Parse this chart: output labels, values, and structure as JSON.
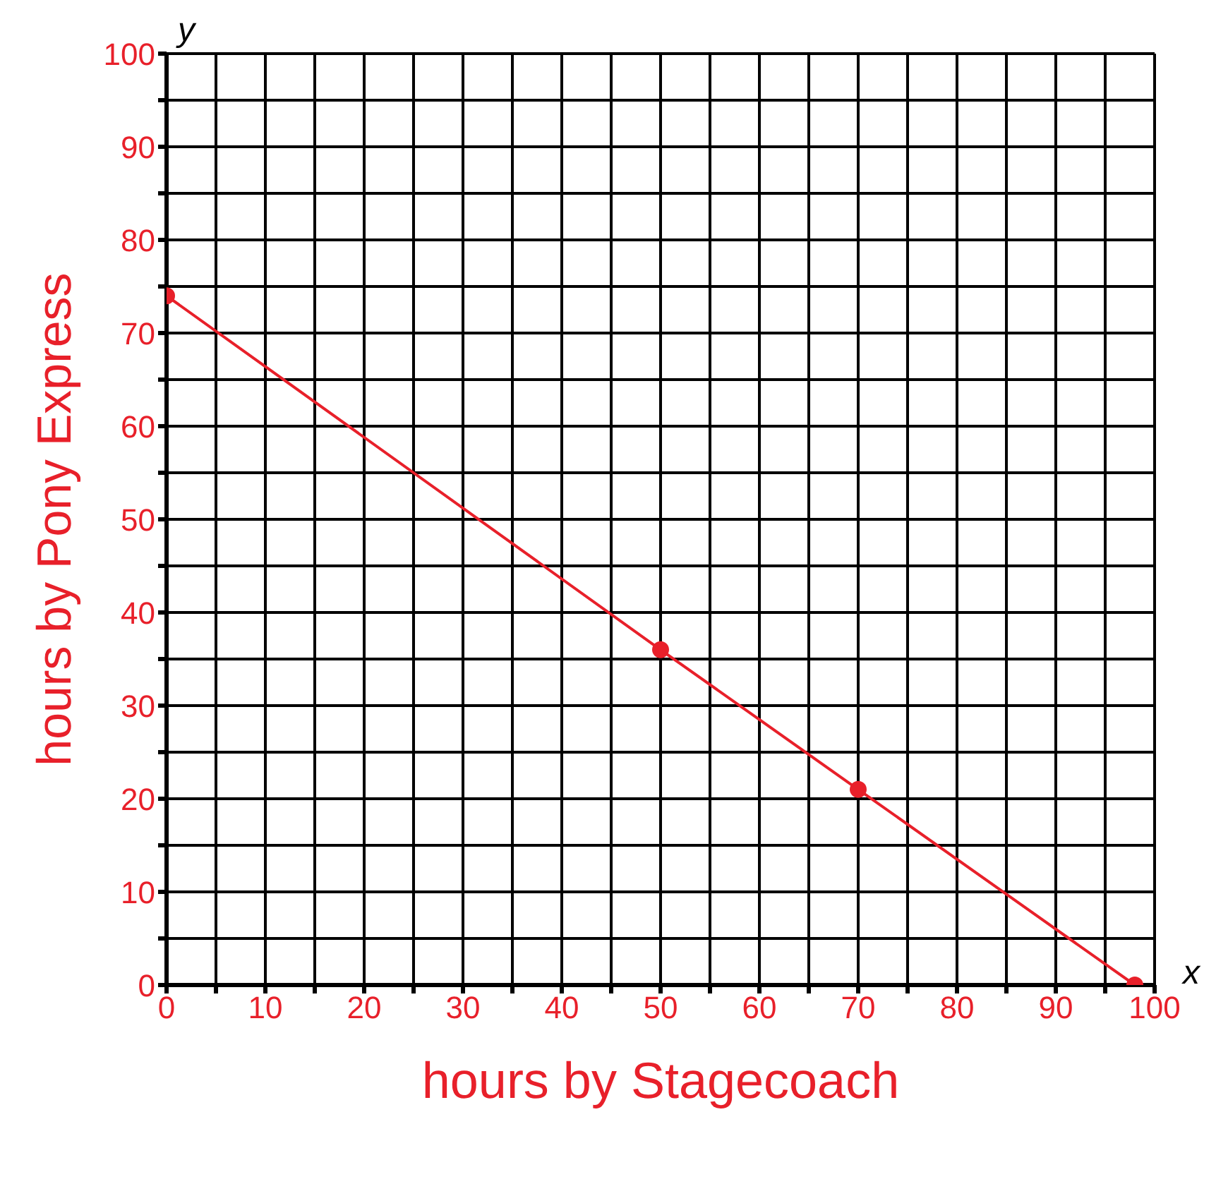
{
  "chart_data": {
    "type": "line",
    "xlabel": "hours by Stagecoach",
    "ylabel": "hours by Pony Express",
    "x": [
      0,
      50,
      70,
      98
    ],
    "series": [
      {
        "color": "#e8202a",
        "values": [
          74,
          36,
          21,
          0
        ]
      }
    ],
    "xlim": [
      0,
      100
    ],
    "ylim": [
      0,
      100
    ],
    "xticks": [
      0,
      {
        "value": 5,
        "label": null
      },
      10,
      {
        "value": 15,
        "label": null
      },
      20,
      {
        "value": 25,
        "label": null
      },
      30,
      {
        "value": 35,
        "label": null
      },
      40,
      {
        "value": 45,
        "label": null
      },
      50,
      {
        "value": 55,
        "label": null
      },
      60,
      {
        "value": 65,
        "label": null
      },
      70,
      {
        "value": 75,
        "label": null
      },
      80,
      {
        "value": 85,
        "label": null
      },
      90,
      {
        "value": 95,
        "label": null
      },
      100
    ],
    "yticks": [
      0,
      {
        "value": 5,
        "label": null
      },
      10,
      {
        "value": 15,
        "label": null
      },
      20,
      {
        "value": 25,
        "label": null
      },
      30,
      {
        "value": 35,
        "label": null
      },
      40,
      {
        "value": 45,
        "label": null
      },
      50,
      {
        "value": 55,
        "label": null
      },
      60,
      {
        "value": 65,
        "label": null
      },
      70,
      {
        "value": 75,
        "label": null
      },
      80,
      {
        "value": 85,
        "label": null
      },
      90,
      {
        "value": 95,
        "label": null
      },
      100
    ],
    "grid": true,
    "marker": "circle",
    "line_style": "solid",
    "legend": false,
    "annotations": [
      "x",
      "y"
    ]
  }
}
